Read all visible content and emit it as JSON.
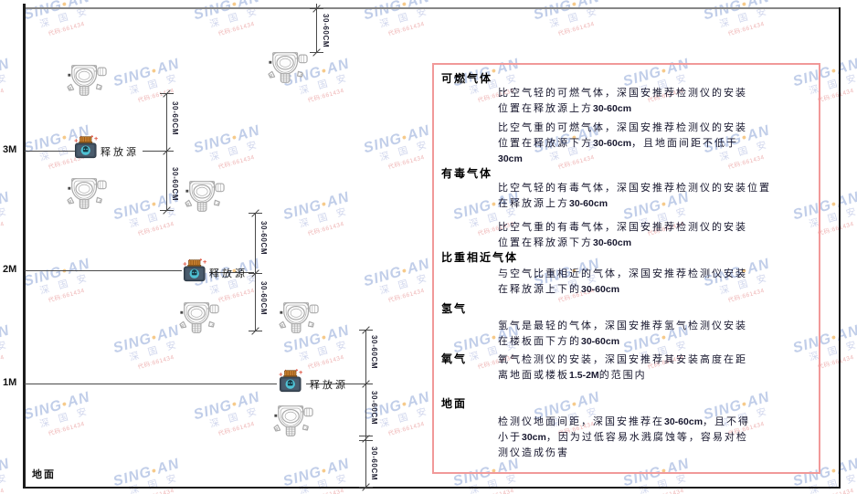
{
  "diagram": {
    "ground_label": "地面",
    "release_source_label": "释放源",
    "dim_label": "30-60CM",
    "height_markers": [
      {
        "label": "3M"
      },
      {
        "label": "2M"
      },
      {
        "label": "1M"
      }
    ]
  },
  "panel": {
    "border_color": "#f19999",
    "sections": [
      {
        "heading": "可燃气体",
        "inline": false,
        "paragraphs": [
          "比空气轻的可燃气体，深国安推荐检测仪的安装\n位置在释放源上方30-60cm",
          "比空气重的可燃气体，深国安推荐检测仪的安装\n位置在释放源下方30-60cm，且地面间距不低于\n30cm"
        ]
      },
      {
        "heading": "有毒气体",
        "inline": false,
        "paragraphs": [
          "比空气轻的有毒气体，深国安推荐检测仪的安装位置\n在释放源上方30-60cm",
          "比空气重的有毒气体，深国安推荐检测仪的安装\n位置在释放源下方30-60cm"
        ]
      },
      {
        "heading": "比重相近气体",
        "inline": false,
        "paragraphs": [
          "与空气比重相近的气体，深国安推荐检测仪安装\n在释放源上下的30-60cm"
        ]
      },
      {
        "heading": "氢气",
        "inline": false,
        "paragraphs": [
          "氢气是最轻的气体，深国安推荐氢气检测仪安装\n在楼板面下方的30-60cm"
        ]
      },
      {
        "heading": "氧气",
        "inline": true,
        "paragraphs": [
          "氧气检测仪的安装，深国安推荐其安装高度在距\n离地面或楼板1.5-2M的范围内"
        ]
      },
      {
        "heading": "地面",
        "inline": false,
        "paragraphs": [
          "检测仪地面间距，深国安推荐在30-60cm，且不得\n小于30cm，因为过低容易水溅腐蚀等，容易对检\n测仪造成伤害"
        ]
      }
    ]
  },
  "watermark": {
    "brand_left": "SING",
    "brand_dot": "●",
    "brand_right": "AN",
    "sub": "深 国 安",
    "code": "代码:661434",
    "dot_color": "#f0a63c"
  }
}
